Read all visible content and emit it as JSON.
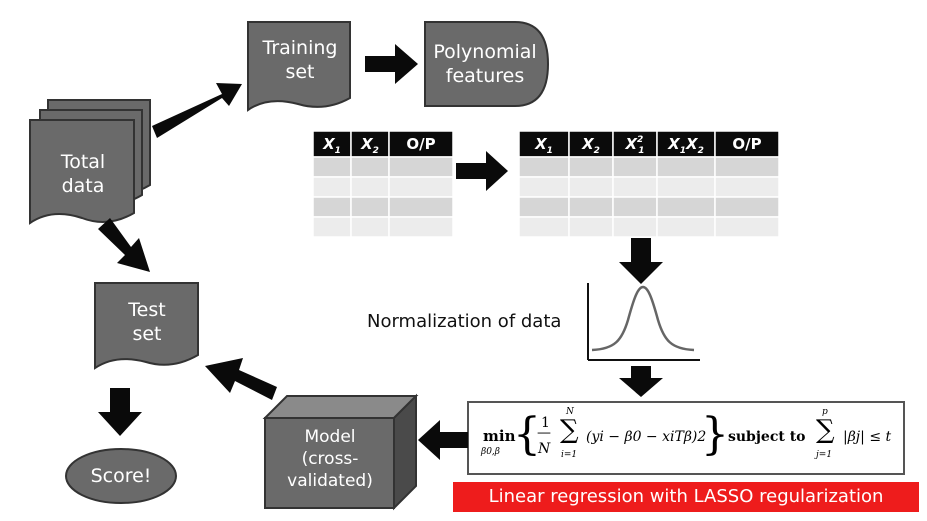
{
  "nodes": {
    "total_data": [
      "Total",
      "data"
    ],
    "training_set": [
      "Training",
      "set"
    ],
    "polynomial_features": [
      "Polynomial",
      "features"
    ],
    "test_set": [
      "Test",
      "set"
    ],
    "score": "Score!",
    "model": [
      "Model",
      "(cross-",
      "validated)"
    ]
  },
  "table_left": {
    "headers": [
      "X1",
      "X2",
      "O/P"
    ],
    "rows": 4
  },
  "table_right": {
    "headers": [
      "X1",
      "X2",
      "X21",
      "X1X2",
      "O/P"
    ],
    "rows": 4
  },
  "normalization_label": "Normalization of data",
  "equation": {
    "min": "min",
    "min_sub": "β0,β",
    "fraction_num": "1",
    "fraction_den": "N",
    "sum1_upper": "N",
    "sum1_lower": "i=1",
    "body": "(yi − β0 − xiTβ)2",
    "subject_to": "subject to",
    "sum2_upper": "p",
    "sum2_lower": "j=1",
    "constraint": "|βj| ≤ t"
  },
  "banner": "Linear regression with LASSO regularization",
  "colors": {
    "node_fill": "#6a6a6a",
    "table_header": "#0b0b0b",
    "banner": "#ee1c1c",
    "arrow": "#0a0a0a"
  }
}
